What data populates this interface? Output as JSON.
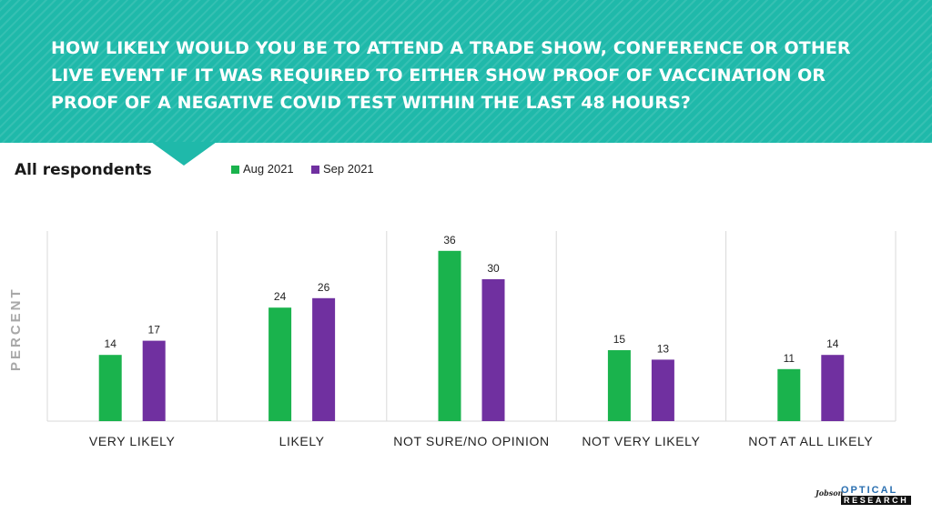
{
  "header": {
    "question_lines": [
      "HOW LIKELY WOULD YOU BE TO ATTEND A TRADE SHOW, CONFERENCE OR OTHER",
      "LIVE EVENT IF IT WAS REQUIRED TO EITHER SHOW PROOF OF VACCINATION OR",
      "PROOF OF A NEGATIVE COVID TEST WITHIN THE LAST 48 HOURS?"
    ]
  },
  "subtitle": "All respondents",
  "logo": {
    "script": "Jobson",
    "top": "OPTICAL",
    "bottom": "RESEARCH"
  },
  "colors": {
    "header": "#1fb9aa",
    "aug": "#1ab34d",
    "sep": "#7030a0",
    "grid": "#d9d9d9"
  },
  "chart_data": {
    "type": "bar",
    "categories": [
      "VERY LIKELY",
      "LIKELY",
      "NOT SURE/NO OPINION",
      "NOT VERY LIKELY",
      "NOT AT ALL LIKELY"
    ],
    "series": [
      {
        "name": "Aug 2021",
        "values": [
          14,
          24,
          36,
          15,
          11
        ],
        "color": "#1ab34d"
      },
      {
        "name": "Sep 2021",
        "values": [
          17,
          26,
          30,
          13,
          14
        ],
        "color": "#7030a0"
      }
    ],
    "ylabel": "PERCENT",
    "ylim": [
      0,
      40
    ],
    "legend": "top",
    "grid": false,
    "data_labels": true
  }
}
